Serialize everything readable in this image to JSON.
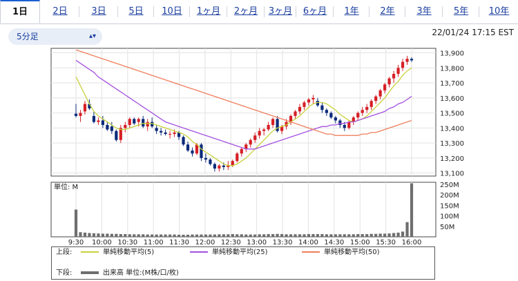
{
  "tabs": [
    {
      "label": "1日",
      "active": true
    },
    {
      "label": "2日"
    },
    {
      "label": "3日"
    },
    {
      "label": "5日"
    },
    {
      "label": "10日"
    },
    {
      "label": "1ヶ月"
    },
    {
      "label": "2ヶ月"
    },
    {
      "label": "3ヶ月"
    },
    {
      "label": "6ヶ月"
    },
    {
      "label": "1年"
    },
    {
      "label": "2年"
    },
    {
      "label": "3年"
    },
    {
      "label": "5年"
    },
    {
      "label": "10年"
    }
  ],
  "interval": {
    "value": "5分足"
  },
  "timestamp": "22/01/24 17:15 EST",
  "legend": {
    "upper_label": "上段:",
    "lower_label": "下段:",
    "ma5": "単純移動平均(5)",
    "ma25": "単純移動平均(25)",
    "ma50": "単純移動平均(50)",
    "volume": "出来高 単位:(M株/口/枚)"
  },
  "colors": {
    "up": "#d61f26",
    "down": "#0b2a7a",
    "ma5": "#c8d13a",
    "ma25": "#a450e0",
    "ma50": "#ef7e5c",
    "volume": "#6e6e6e",
    "tab_active": "#1a5fd0"
  },
  "chart_data": [
    {
      "type": "candlestick",
      "x_labels": [
        "9:30",
        "10:00",
        "10:30",
        "11:00",
        "11:30",
        "12:00",
        "12:30",
        "13:00",
        "13:30",
        "14:00",
        "14:30",
        "15:00",
        "15:30",
        "16:00"
      ],
      "y_ticks": [
        13100,
        13200,
        13300,
        13400,
        13500,
        13600,
        13700,
        13800,
        13900
      ],
      "ylim": [
        13080,
        13930
      ],
      "candles": [
        [
          13495,
          13560,
          13470,
          13480
        ],
        [
          13480,
          13520,
          13440,
          13500
        ],
        [
          13510,
          13580,
          13490,
          13560
        ],
        [
          13560,
          13590,
          13520,
          13530
        ],
        [
          13480,
          13510,
          13430,
          13440
        ],
        [
          13440,
          13470,
          13420,
          13450
        ],
        [
          13450,
          13480,
          13400,
          13420
        ],
        [
          13420,
          13440,
          13380,
          13390
        ],
        [
          13410,
          13440,
          13360,
          13380
        ],
        [
          13380,
          13390,
          13310,
          13320
        ],
        [
          13320,
          13420,
          13300,
          13400
        ],
        [
          13400,
          13440,
          13370,
          13420
        ],
        [
          13420,
          13470,
          13400,
          13460
        ],
        [
          13460,
          13470,
          13420,
          13430
        ],
        [
          13440,
          13470,
          13410,
          13460
        ],
        [
          13460,
          13480,
          13400,
          13410
        ],
        [
          13410,
          13460,
          13380,
          13440
        ],
        [
          13440,
          13470,
          13400,
          13410
        ],
        [
          13400,
          13420,
          13360,
          13380
        ],
        [
          13380,
          13400,
          13350,
          13370
        ],
        [
          13370,
          13390,
          13350,
          13360
        ],
        [
          13360,
          13380,
          13330,
          13360
        ],
        [
          13360,
          13390,
          13340,
          13370
        ],
        [
          13370,
          13380,
          13320,
          13340
        ],
        [
          13340,
          13350,
          13280,
          13290
        ],
        [
          13290,
          13310,
          13240,
          13250
        ],
        [
          13250,
          13270,
          13210,
          13230
        ],
        [
          13230,
          13300,
          13220,
          13290
        ],
        [
          13290,
          13300,
          13180,
          13200
        ],
        [
          13200,
          13230,
          13170,
          13190
        ],
        [
          13190,
          13200,
          13150,
          13160
        ],
        [
          13160,
          13170,
          13110,
          13130
        ],
        [
          13130,
          13160,
          13110,
          13150
        ],
        [
          13150,
          13170,
          13120,
          13140
        ],
        [
          13140,
          13180,
          13120,
          13150
        ],
        [
          13150,
          13190,
          13140,
          13180
        ],
        [
          13180,
          13240,
          13170,
          13230
        ],
        [
          13230,
          13270,
          13210,
          13260
        ],
        [
          13260,
          13300,
          13240,
          13290
        ],
        [
          13290,
          13330,
          13270,
          13320
        ],
        [
          13320,
          13370,
          13300,
          13350
        ],
        [
          13350,
          13400,
          13330,
          13380
        ],
        [
          13380,
          13400,
          13350,
          13390
        ],
        [
          13390,
          13440,
          13380,
          13420
        ],
        [
          13420,
          13470,
          13400,
          13460
        ],
        [
          13460,
          13480,
          13370,
          13380
        ],
        [
          13380,
          13420,
          13360,
          13410
        ],
        [
          13410,
          13460,
          13390,
          13440
        ],
        [
          13440,
          13490,
          13420,
          13480
        ],
        [
          13480,
          13520,
          13460,
          13510
        ],
        [
          13510,
          13560,
          13490,
          13540
        ],
        [
          13540,
          13580,
          13520,
          13570
        ],
        [
          13570,
          13600,
          13550,
          13590
        ],
        [
          13590,
          13620,
          13560,
          13600
        ],
        [
          13580,
          13600,
          13540,
          13550
        ],
        [
          13550,
          13570,
          13500,
          13520
        ],
        [
          13520,
          13530,
          13480,
          13500
        ],
        [
          13500,
          13510,
          13460,
          13470
        ],
        [
          13470,
          13480,
          13430,
          13450
        ],
        [
          13450,
          13460,
          13400,
          13420
        ],
        [
          13420,
          13440,
          13380,
          13400
        ],
        [
          13400,
          13450,
          13390,
          13440
        ],
        [
          13440,
          13480,
          13420,
          13470
        ],
        [
          13470,
          13510,
          13450,
          13500
        ],
        [
          13500,
          13540,
          13480,
          13520
        ],
        [
          13520,
          13560,
          13500,
          13540
        ],
        [
          13540,
          13590,
          13520,
          13580
        ],
        [
          13580,
          13620,
          13560,
          13610
        ],
        [
          13610,
          13660,
          13590,
          13650
        ],
        [
          13650,
          13700,
          13630,
          13690
        ],
        [
          13690,
          13740,
          13670,
          13730
        ],
        [
          13730,
          13780,
          13700,
          13760
        ],
        [
          13760,
          13820,
          13740,
          13800
        ],
        [
          13800,
          13860,
          13780,
          13840
        ],
        [
          13840,
          13880,
          13820,
          13860
        ],
        [
          13860,
          13870,
          13840,
          13850
        ]
      ],
      "series": [
        {
          "name": "単純移動平均(5)",
          "values": [
            13740,
            13680,
            13620,
            13560,
            13510,
            13480,
            13460,
            13440,
            13420,
            13400,
            13390,
            13390,
            13400,
            13410,
            13420,
            13430,
            13430,
            13430,
            13420,
            13410,
            13400,
            13390,
            13380,
            13370,
            13360,
            13340,
            13310,
            13290,
            13260,
            13240,
            13220,
            13200,
            13180,
            13160,
            13150,
            13150,
            13160,
            13180,
            13200,
            13230,
            13260,
            13290,
            13320,
            13350,
            13380,
            13400,
            13410,
            13420,
            13440,
            13460,
            13480,
            13510,
            13540,
            13560,
            13570,
            13570,
            13560,
            13540,
            13520,
            13490,
            13470,
            13450,
            13440,
            13450,
            13460,
            13480,
            13510,
            13540,
            13570,
            13600,
            13640,
            13680,
            13710,
            13750,
            13780,
            13800
          ]
        },
        {
          "name": "単純移動平均(25)",
          "values": [
            13850,
            13830,
            13810,
            13790,
            13770,
            13740,
            13720,
            13700,
            13680,
            13660,
            13640,
            13620,
            13600,
            13580,
            13560,
            13540,
            13520,
            13500,
            13480,
            13460,
            13440,
            13430,
            13420,
            13410,
            13400,
            13390,
            13380,
            13370,
            13360,
            13350,
            13340,
            13330,
            13320,
            13310,
            13300,
            13290,
            13280,
            13270,
            13260,
            13260,
            13260,
            13270,
            13280,
            13290,
            13300,
            13310,
            13320,
            13330,
            13340,
            13350,
            13360,
            13370,
            13380,
            13390,
            13400,
            13410,
            13410,
            13420,
            13420,
            13430,
            13430,
            13440,
            13440,
            13450,
            13460,
            13470,
            13480,
            13490,
            13500,
            13510,
            13530,
            13540,
            13560,
            13570,
            13590,
            13610
          ]
        },
        {
          "name": "単純移動平均(50)",
          "values": [
            13920,
            13910,
            13900,
            13890,
            13880,
            13870,
            13860,
            13850,
            13840,
            13830,
            13820,
            13810,
            13800,
            13790,
            13780,
            13770,
            13760,
            13750,
            13740,
            13730,
            13720,
            13710,
            13700,
            13690,
            13680,
            13670,
            13660,
            13650,
            13640,
            13630,
            13620,
            13610,
            13600,
            13590,
            13580,
            13570,
            13560,
            13550,
            13540,
            13530,
            13520,
            13510,
            13500,
            13490,
            13480,
            13470,
            13460,
            13450,
            13440,
            13430,
            13420,
            13410,
            13400,
            13390,
            13380,
            13370,
            13360,
            13360,
            13350,
            13350,
            13350,
            13350,
            13350,
            13350,
            13360,
            13360,
            13370,
            13370,
            13380,
            13390,
            13400,
            13410,
            13420,
            13430,
            13440,
            13450
          ]
        }
      ]
    },
    {
      "type": "bar",
      "unit_label": "単位: M",
      "y_ticks": [
        "50M",
        "100M",
        "150M",
        "200M",
        "250M"
      ],
      "ylim": [
        0,
        260
      ],
      "values": [
        130,
        22,
        20,
        18,
        17,
        16,
        15,
        15,
        14,
        14,
        13,
        13,
        12,
        12,
        12,
        12,
        11,
        11,
        11,
        11,
        11,
        11,
        11,
        10,
        10,
        10,
        11,
        11,
        11,
        11,
        11,
        11,
        12,
        12,
        12,
        13,
        12,
        12,
        11,
        11,
        11,
        12,
        12,
        13,
        13,
        14,
        13,
        12,
        12,
        12,
        12,
        12,
        13,
        13,
        13,
        13,
        12,
        12,
        12,
        12,
        12,
        12,
        12,
        13,
        13,
        13,
        14,
        14,
        15,
        15,
        16,
        18,
        20,
        25,
        70,
        255
      ]
    }
  ]
}
